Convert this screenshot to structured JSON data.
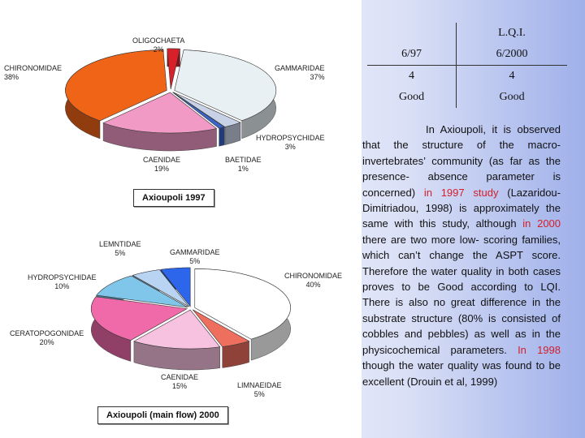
{
  "chart_data": [
    {
      "type": "pie",
      "title": "Axioupoli 1997",
      "slices": [
        {
          "label": "OLIGOCHAETA",
          "pct_text": "2%",
          "value": 2,
          "color": "#d8202a"
        },
        {
          "label": "GAMMARIDAE",
          "pct_text": "37%",
          "value": 37,
          "color": "#e8f0f4"
        },
        {
          "label": "HYDROPSYCHIDAE",
          "pct_text": "3%",
          "value": 3,
          "color": "#c8d2e6"
        },
        {
          "label": "BAETIDAE",
          "pct_text": "1%",
          "value": 1,
          "color": "#3a64c8"
        },
        {
          "label": "CAENIDAE",
          "pct_text": "19%",
          "value": 19,
          "color": "#f19ac6"
        },
        {
          "label": "CHIRONOMIDAE",
          "pct_text": "38%",
          "value": 38,
          "color": "#f06418"
        }
      ]
    },
    {
      "type": "pie",
      "title": "Axioupoli (main flow) 2000",
      "slices": [
        {
          "label": "CHIRONOMIDAE",
          "pct_text": "40%",
          "value": 40,
          "color": "#ffffff"
        },
        {
          "label": "LIMNAEIDAE",
          "pct_text": "5%",
          "value": 5,
          "color": "#ee6f5e"
        },
        {
          "label": "CAENIDAE",
          "pct_text": "15%",
          "value": 15,
          "color": "#f7c2e0"
        },
        {
          "label": "CERATOPOGONIDAE",
          "pct_text": "20%",
          "value": 20,
          "color": "#f06aaa"
        },
        {
          "label": "HYDROPSYCHIDAE",
          "pct_text": "10%",
          "value": 10,
          "color": "#7fc6ea"
        },
        {
          "label": "LEMNTIDAE",
          "pct_text": "5%",
          "value": 5,
          "color": "#b8d4f2"
        },
        {
          "label": "GAMMARIDAE",
          "pct_text": "5%",
          "value": 5,
          "color": "#2d66ea"
        }
      ]
    }
  ],
  "lqi_table": {
    "title": "L.Q.I.",
    "columns": [
      "6/97",
      "6/2000"
    ],
    "rows": [
      [
        "4",
        "4"
      ],
      [
        "Good",
        "Good"
      ]
    ]
  },
  "text": {
    "p1": "In Axioupoli, it is observed that the structure of the macro-invertebrates’ community (as far as the presence- absence parameter is concerned) ",
    "h1": "in 1997 study",
    "p2": " (Lazaridou-Dimitriadou, 1998) is approximately the same with this study, although ",
    "h2": "in 2000",
    "p3": " there are two more low- scoring families, which can’t change the ASPT score. Therefore the water quality in both cases proves to be Good according to LQI. There is also no great  difference in the substrate structure (80% is consisted of cobbles and pebbles) as well as in the physicochemical parameters. ",
    "h3": "In 1998",
    "p4": " though the water quality was found to be excellent (Drouin et al, 1999)"
  }
}
